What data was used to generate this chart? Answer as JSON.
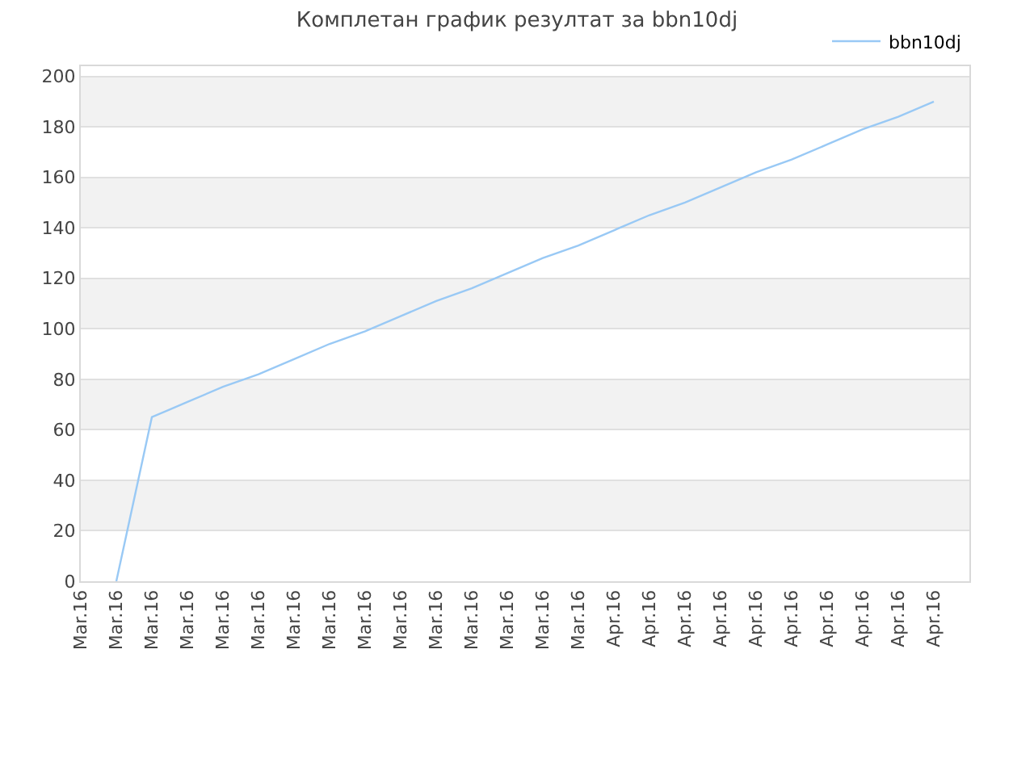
{
  "chart_data": {
    "type": "line",
    "title": "Комплетан график резултат за bbn10dj",
    "categories": [
      "Mar.16",
      "Mar.16",
      "Mar.16",
      "Mar.16",
      "Mar.16",
      "Mar.16",
      "Mar.16",
      "Mar.16",
      "Mar.16",
      "Mar.16",
      "Mar.16",
      "Mar.16",
      "Mar.16",
      "Mar.16",
      "Mar.16",
      "Apr.16",
      "Apr.16",
      "Apr.16",
      "Apr.16",
      "Apr.16",
      "Apr.16",
      "Apr.16",
      "Apr.16",
      "Apr.16",
      "Apr.16"
    ],
    "series": [
      {
        "name": "bbn10dj",
        "color": "#99c9f5",
        "values": [
          null,
          0,
          65,
          71,
          77,
          82,
          88,
          94,
          99,
          105,
          111,
          116,
          122,
          128,
          133,
          139,
          145,
          150,
          156,
          162,
          167,
          173,
          179,
          184,
          190
        ]
      }
    ],
    "ylim": [
      0,
      204
    ],
    "yticks": [
      0,
      20,
      40,
      60,
      80,
      100,
      120,
      140,
      160,
      180,
      200
    ],
    "bands": [
      {
        "axis": "y",
        "from": 20,
        "to": 40,
        "color": "#f2f2f2"
      },
      {
        "axis": "y",
        "from": 60,
        "to": 80,
        "color": "#f2f2f2"
      },
      {
        "axis": "y",
        "from": 100,
        "to": 120,
        "color": "#f2f2f2"
      },
      {
        "axis": "y",
        "from": 140,
        "to": 160,
        "color": "#f2f2f2"
      },
      {
        "axis": "y",
        "from": 180,
        "to": 200,
        "color": "#f2f2f2"
      }
    ],
    "grid": "y",
    "legend": "top right",
    "marker": "none",
    "line_style": "solid"
  }
}
